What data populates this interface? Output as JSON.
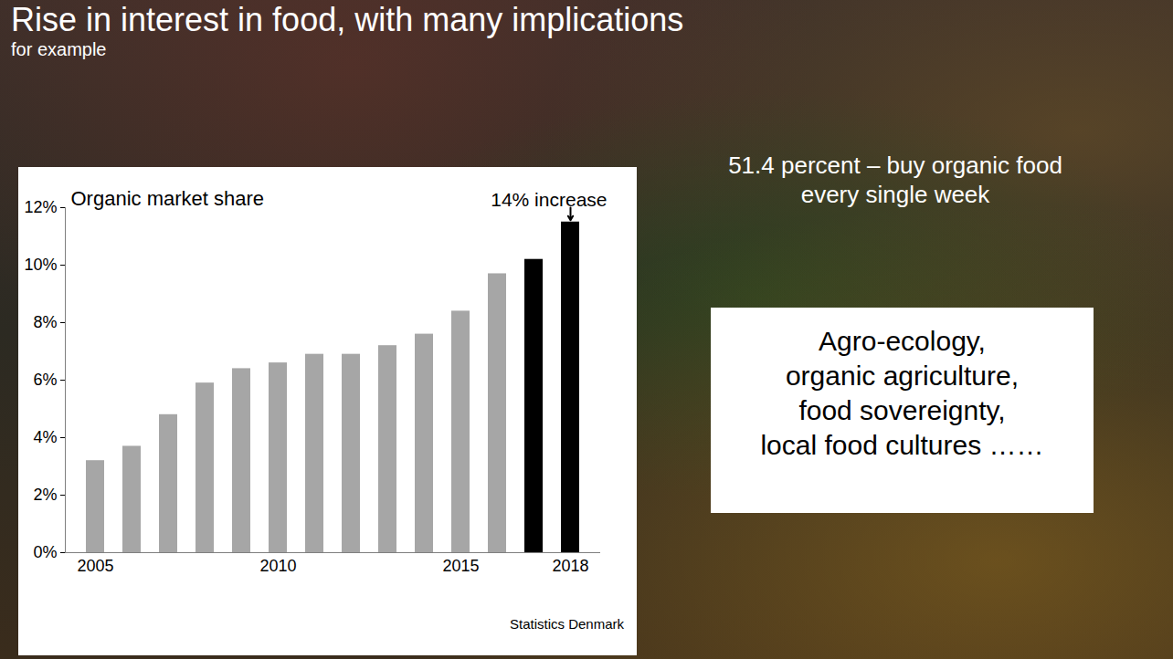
{
  "slide": {
    "title": "Rise in interest in food, with many implications",
    "subtitle": "for example",
    "callouts": [
      "51.4 percent – buy organic food every single week",
      "Agro-ecology, organic agriculture, food sovereignty, local food cultures ……"
    ]
  },
  "chart_data": {
    "type": "bar",
    "title": "Organic market share",
    "categories": [
      "2005",
      null,
      null,
      null,
      null,
      "2010",
      null,
      null,
      null,
      null,
      "2015",
      null,
      null,
      "2018"
    ],
    "values": [
      3.2,
      3.7,
      4.8,
      5.9,
      6.4,
      6.6,
      6.9,
      6.9,
      7.2,
      7.6,
      8.4,
      9.7,
      10.2,
      11.5
    ],
    "colors": [
      "#a6a6a6",
      "#a6a6a6",
      "#a6a6a6",
      "#a6a6a6",
      "#a6a6a6",
      "#a6a6a6",
      "#a6a6a6",
      "#a6a6a6",
      "#a6a6a6",
      "#a6a6a6",
      "#a6a6a6",
      "#a6a6a6",
      "#000000",
      "#000000"
    ],
    "ylim": [
      0,
      12
    ],
    "yticks": [
      {
        "value": 0,
        "label": "0%"
      },
      {
        "value": 2,
        "label": "2%"
      },
      {
        "value": 4,
        "label": "4%"
      },
      {
        "value": 6,
        "label": "6%"
      },
      {
        "value": 8,
        "label": "8%"
      },
      {
        "value": 10,
        "label": "10%"
      },
      {
        "value": 12,
        "label": "12%"
      }
    ],
    "annotation": "14% increase",
    "source": "Statistics Denmark",
    "grid": false
  }
}
